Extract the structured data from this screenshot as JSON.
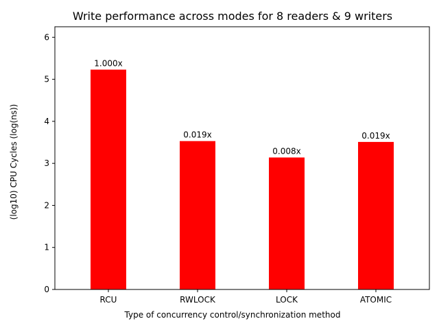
{
  "chart_data": {
    "type": "bar",
    "title": "Write performance across modes for 8 readers & 9 writers",
    "xlabel": "Type of concurrency control/synchronization method",
    "ylabel": "(log10) CPU Cycles (log(ns))",
    "categories": [
      "RCU",
      "RWLOCK",
      "LOCK",
      "ATOMIC"
    ],
    "values": [
      5.23,
      3.53,
      3.14,
      3.51
    ],
    "data_labels": [
      "1.000x",
      "0.019x",
      "0.008x",
      "0.019x"
    ],
    "ylim": [
      0,
      6.25
    ],
    "yticks": [
      0,
      1,
      2,
      3,
      4,
      5,
      6
    ],
    "bar_color": "#ff0000",
    "grid": false,
    "legend": "none"
  }
}
